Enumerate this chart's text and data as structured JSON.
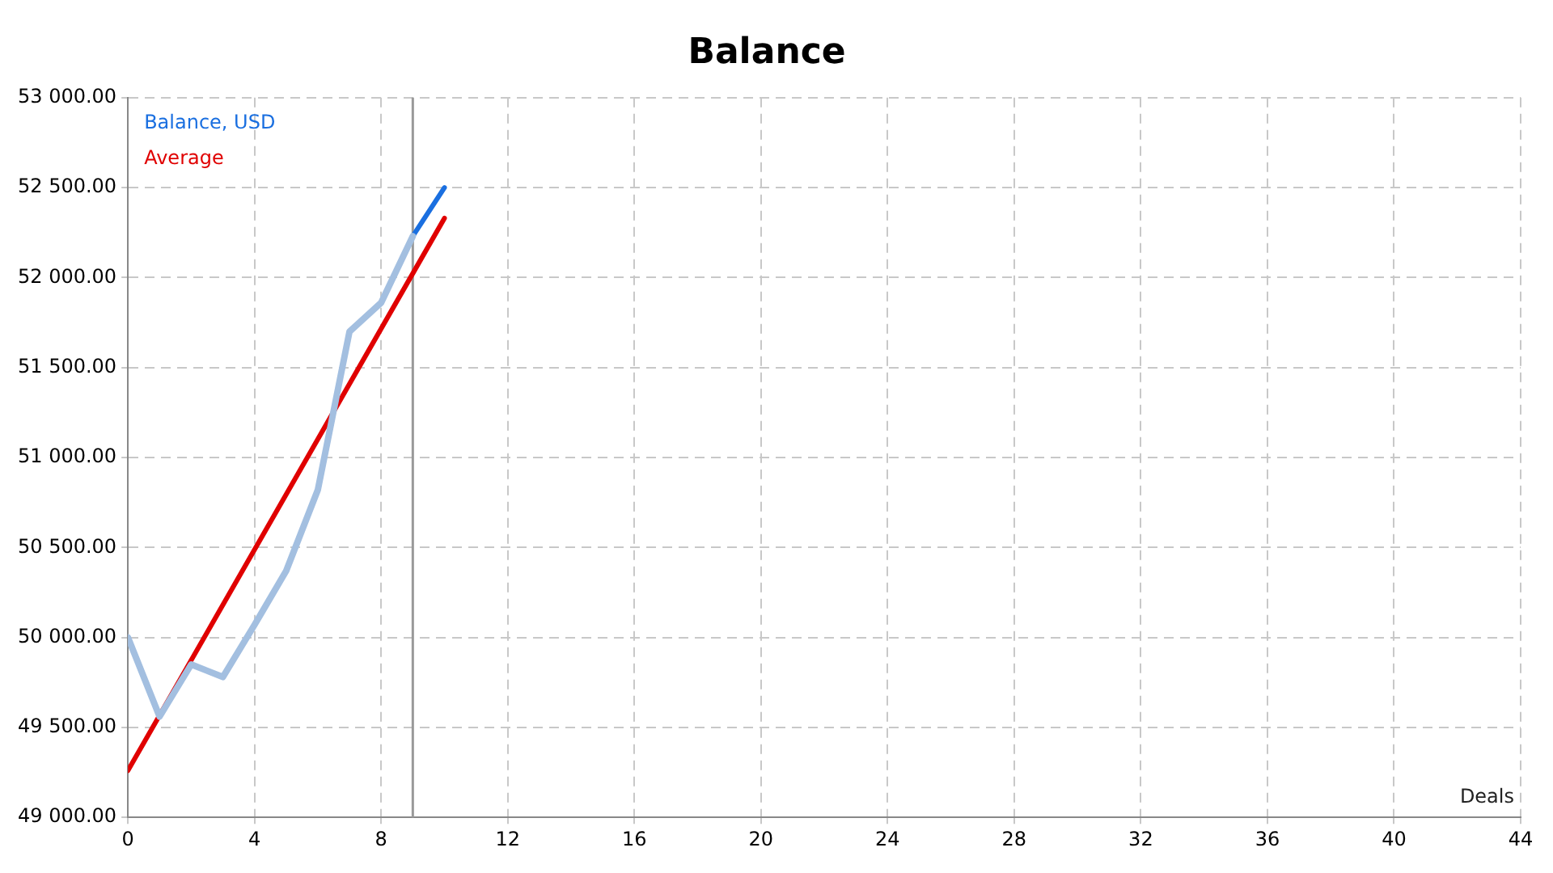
{
  "chart_data": {
    "type": "line",
    "title": "Balance",
    "xlabel": "Deals",
    "x": [
      0,
      1,
      2,
      3,
      4,
      5,
      6,
      7,
      8,
      9
    ],
    "series": [
      {
        "color": "#a3bfe0",
        "values": [
          50000,
          49560,
          49850,
          49780,
          50070,
          50370,
          50820,
          51700,
          51860,
          52230
        ]
      },
      {
        "name": "Balance, USD",
        "color": "#1a6fe0",
        "x": [
          9,
          10
        ],
        "values": [
          52230,
          52500
        ]
      },
      {
        "name": "Average",
        "color": "#e00000",
        "x": [
          0,
          10
        ],
        "values": [
          49260,
          52330
        ]
      }
    ],
    "xlim": [
      0,
      44
    ],
    "xticks": [
      0,
      4,
      8,
      12,
      16,
      20,
      24,
      28,
      32,
      36,
      40,
      44
    ],
    "ylim": [
      49000,
      53000
    ],
    "yticks": [
      {
        "value": 49000,
        "label": "49 000.00"
      },
      {
        "value": 49500,
        "label": "49 500.00"
      },
      {
        "value": 50000,
        "label": "50 000.00"
      },
      {
        "value": 50500,
        "label": "50 500.00"
      },
      {
        "value": 51000,
        "label": "51 000.00"
      },
      {
        "value": 51500,
        "label": "51 500.00"
      },
      {
        "value": 52000,
        "label": "52 000.00"
      },
      {
        "value": 52500,
        "label": "52 500.00"
      },
      {
        "value": 53000,
        "label": "53 000.00"
      }
    ],
    "ref_lines": [
      {
        "axis": "x",
        "value": 9,
        "color": "#999999"
      }
    ],
    "grid": true,
    "legend": "top left",
    "marker": "none",
    "line_style": "solid"
  }
}
